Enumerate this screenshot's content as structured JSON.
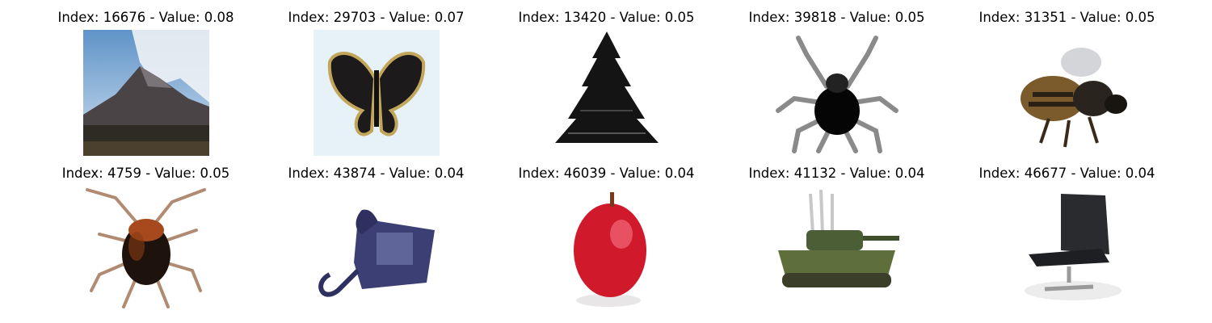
{
  "figure": {
    "panels": [
      {
        "index": "16676",
        "value": "0.08",
        "title": "Index: 16676 - Value: 0.08",
        "subject": "mountain"
      },
      {
        "index": "29703",
        "value": "0.07",
        "title": "Index: 29703 - Value: 0.07",
        "subject": "butterfly"
      },
      {
        "index": "13420",
        "value": "0.05",
        "title": "Index: 13420 - Value: 0.05",
        "subject": "pine tree"
      },
      {
        "index": "39818",
        "value": "0.05",
        "title": "Index: 39818 - Value: 0.05",
        "subject": "spider"
      },
      {
        "index": "31351",
        "value": "0.05",
        "title": "Index: 31351 - Value: 0.05",
        "subject": "bee"
      },
      {
        "index": "4759",
        "value": "0.05",
        "title": "Index: 4759 - Value: 0.05",
        "subject": "cockroach"
      },
      {
        "index": "43874",
        "value": "0.04",
        "title": "Index: 43874 - Value: 0.04",
        "subject": "telephone"
      },
      {
        "index": "46039",
        "value": "0.04",
        "title": "Index: 46039 - Value: 0.04",
        "subject": "apple"
      },
      {
        "index": "41132",
        "value": "0.04",
        "title": "Index: 41132 - Value: 0.04",
        "subject": "tank"
      },
      {
        "index": "46677",
        "value": "0.04",
        "title": "Index: 46677 - Value: 0.04",
        "subject": "chair"
      }
    ]
  }
}
